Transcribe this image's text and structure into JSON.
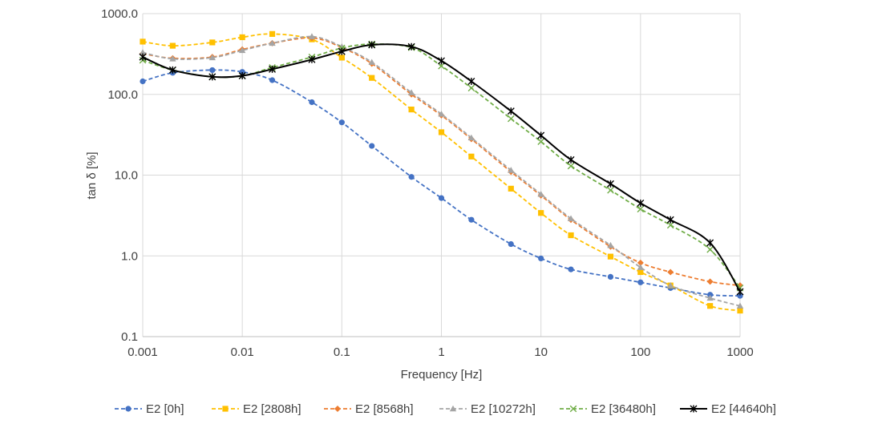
{
  "chart_data": {
    "type": "line",
    "xlabel": "Frequency [Hz]",
    "ylabel": "tan δ [%]",
    "xscale": "log",
    "yscale": "log",
    "xlim": [
      0.001,
      1000
    ],
    "ylim": [
      0.1,
      1000
    ],
    "grid": true,
    "legend_position": "bottom",
    "x_ticks": [
      {
        "value": 0.001,
        "label": "0.001"
      },
      {
        "value": 0.01,
        "label": "0.01"
      },
      {
        "value": 0.1,
        "label": "0.1"
      },
      {
        "value": 1,
        "label": "1"
      },
      {
        "value": 10,
        "label": "10"
      },
      {
        "value": 100,
        "label": "100"
      },
      {
        "value": 1000,
        "label": "1000"
      }
    ],
    "y_ticks": [
      {
        "value": 0.1,
        "label": "0.1"
      },
      {
        "value": 1,
        "label": "1.0"
      },
      {
        "value": 10,
        "label": "10.0"
      },
      {
        "value": 100,
        "label": "100.0"
      },
      {
        "value": 1000,
        "label": "1000.0"
      }
    ],
    "x": [
      0.001,
      0.002,
      0.005,
      0.01,
      0.02,
      0.05,
      0.1,
      0.2,
      0.5,
      1,
      2,
      5,
      10,
      20,
      50,
      100,
      200,
      500,
      1000
    ],
    "series": [
      {
        "name": "E2 [0h]",
        "color": "#4472c4",
        "marker": "circle",
        "dash": "dashed",
        "values": [
          145,
          185,
          200,
          190,
          150,
          80,
          45,
          23,
          9.5,
          5.2,
          2.8,
          1.4,
          0.93,
          0.68,
          0.55,
          0.47,
          0.4,
          0.33,
          0.32
        ]
      },
      {
        "name": "E2 [2808h]",
        "color": "#ffc000",
        "marker": "square",
        "dash": "dashed",
        "values": [
          450,
          400,
          440,
          510,
          560,
          480,
          285,
          160,
          65,
          34,
          17,
          6.8,
          3.4,
          1.8,
          0.98,
          0.63,
          0.43,
          0.24,
          0.21
        ]
      },
      {
        "name": "E2 [8568h]",
        "color": "#ed7d31",
        "marker": "diamond",
        "dash": "dashed",
        "values": [
          320,
          280,
          290,
          360,
          430,
          500,
          380,
          240,
          100,
          55,
          28,
          11,
          5.6,
          2.8,
          1.3,
          0.82,
          0.63,
          0.48,
          0.43
        ]
      },
      {
        "name": "E2 [10272h]",
        "color": "#a5a5a5",
        "marker": "triangle",
        "dash": "dashed",
        "values": [
          330,
          275,
          285,
          350,
          430,
          520,
          390,
          250,
          105,
          57,
          29,
          11.5,
          5.8,
          2.9,
          1.35,
          0.72,
          0.43,
          0.3,
          0.24
        ]
      },
      {
        "name": "E2 [36480h]",
        "color": "#70ad47",
        "marker": "x",
        "dash": "dashed",
        "values": [
          265,
          200,
          165,
          170,
          215,
          290,
          375,
          420,
          380,
          225,
          120,
          50,
          26,
          13,
          6.5,
          3.8,
          2.4,
          1.2,
          0.4
        ]
      },
      {
        "name": "E2 [44640h]",
        "color": "#000000",
        "marker": "star",
        "dash": "solid",
        "values": [
          290,
          200,
          165,
          170,
          205,
          270,
          340,
          410,
          390,
          260,
          145,
          62,
          31,
          15.5,
          7.8,
          4.5,
          2.8,
          1.45,
          0.36
        ]
      }
    ]
  }
}
